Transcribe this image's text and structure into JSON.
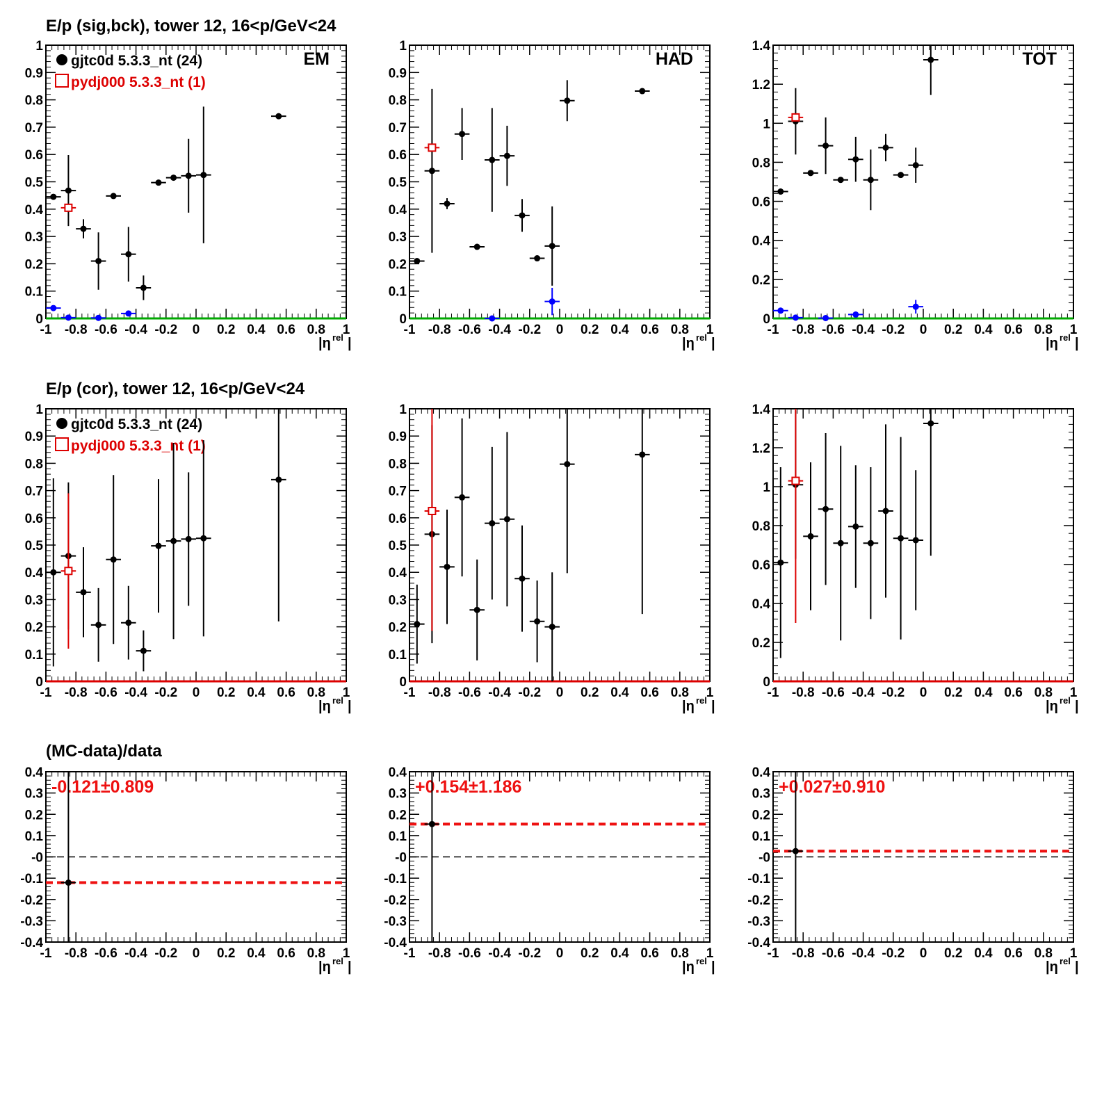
{
  "row_titles": [
    "E/p (sig,bck), tower 12, 16<p/GeV<24",
    "E/p (cor), tower 12, 16<p/GeV<24",
    "(MC-data)/data"
  ],
  "legend": {
    "data_label": "gjtc0d 5.3.3_nt (24)",
    "mc_label": "pydj000 5.3.3_nt (1)"
  },
  "xlabel": "|η",
  "xlabel_sup": "rel",
  "colors": {
    "data": "#000000",
    "mc": "#dd0000",
    "background": "#0000ff",
    "baseline_green": "#00aa00",
    "baseline_red": "#dd0000"
  },
  "chart_data": [
    {
      "type": "scatter",
      "panel": "EM",
      "label": "EM",
      "xlim": [
        -1,
        1
      ],
      "ylim": [
        0,
        1
      ],
      "xticks": [
        "-1",
        "-0.8",
        "-0.6",
        "-0.4",
        "-0.2",
        "0",
        "0.2",
        "0.4",
        "0.6",
        "0.8",
        "1"
      ],
      "yticks": [
        "0",
        "0.1",
        "0.2",
        "0.3",
        "0.4",
        "0.5",
        "0.6",
        "0.7",
        "0.8",
        "0.9",
        "1"
      ],
      "series": [
        {
          "name": "gjtc0d 5.3.3_nt (24)",
          "color": "#000000",
          "marker": "dot",
          "x": [
            -0.95,
            -0.85,
            -0.75,
            -0.65,
            -0.55,
            -0.45,
            -0.35,
            -0.25,
            -0.15,
            -0.05,
            0.05,
            0.55
          ],
          "y": [
            0.445,
            0.468,
            0.328,
            0.21,
            0.448,
            0.235,
            0.112,
            0.497,
            0.515,
            0.522,
            0.525,
            0.74
          ],
          "yerr": [
            0.005,
            0.13,
            0.035,
            0.105,
            0.005,
            0.1,
            0.045,
            0.005,
            0.005,
            0.135,
            0.25,
            0.005
          ]
        },
        {
          "name": "pydj000 5.3.3_nt (1)",
          "color": "#dd0000",
          "marker": "open-square",
          "x": [
            -0.85
          ],
          "y": [
            0.405
          ],
          "yerr": [
            0.0
          ]
        },
        {
          "color": "#0000ff",
          "marker": "dot",
          "x": [
            -0.95,
            -0.85,
            -0.65,
            -0.45
          ],
          "y": [
            0.038,
            0.003,
            0.002,
            0.018
          ],
          "yerr": [
            0.003,
            0.003,
            0.002,
            0.006
          ]
        }
      ],
      "baseline": {
        "y": 0,
        "color": "#00aa00"
      }
    },
    {
      "type": "scatter",
      "panel": "HAD",
      "label": "HAD",
      "xlim": [
        -1,
        1
      ],
      "ylim": [
        0,
        1
      ],
      "xticks": [
        "-1",
        "-0.8",
        "-0.6",
        "-0.4",
        "-0.2",
        "0",
        "0.2",
        "0.4",
        "0.6",
        "0.8",
        "1"
      ],
      "yticks": [
        "0",
        "0.1",
        "0.2",
        "0.3",
        "0.4",
        "0.5",
        "0.6",
        "0.7",
        "0.8",
        "0.9",
        "1"
      ],
      "series": [
        {
          "color": "#000000",
          "marker": "dot",
          "x": [
            -0.95,
            -0.85,
            -0.75,
            -0.65,
            -0.55,
            -0.45,
            -0.35,
            -0.25,
            -0.15,
            -0.05,
            0.05,
            0.55
          ],
          "y": [
            0.21,
            0.54,
            0.42,
            0.675,
            0.262,
            0.58,
            0.595,
            0.377,
            0.22,
            0.265,
            0.797,
            0.832
          ],
          "yerr": [
            0.005,
            0.3,
            0.02,
            0.095,
            0.005,
            0.19,
            0.11,
            0.06,
            0.005,
            0.145,
            0.075,
            0.005
          ]
        },
        {
          "color": "#dd0000",
          "marker": "open-square",
          "x": [
            -0.85
          ],
          "y": [
            0.625
          ],
          "yerr": [
            0.0
          ]
        },
        {
          "color": "#0000ff",
          "marker": "dot",
          "x": [
            -0.45,
            -0.05
          ],
          "y": [
            0.0,
            0.062
          ],
          "yerr": [
            0.002,
            0.05
          ]
        }
      ],
      "baseline": {
        "y": 0,
        "color": "#00aa00"
      }
    },
    {
      "type": "scatter",
      "panel": "TOT",
      "label": "TOT",
      "xlim": [
        -1,
        1
      ],
      "ylim": [
        0,
        1.4
      ],
      "xticks": [
        "-1",
        "-0.8",
        "-0.6",
        "-0.4",
        "-0.2",
        "0",
        "0.2",
        "0.4",
        "0.6",
        "0.8",
        "1"
      ],
      "yticks": [
        "0",
        "0.2",
        "0.4",
        "0.6",
        "0.8",
        "1",
        "1.2",
        "1.4"
      ],
      "series": [
        {
          "color": "#000000",
          "marker": "dot",
          "x": [
            -0.95,
            -0.85,
            -0.75,
            -0.65,
            -0.55,
            -0.45,
            -0.35,
            -0.25,
            -0.15,
            -0.05,
            0.05
          ],
          "y": [
            0.65,
            1.01,
            0.745,
            0.885,
            0.71,
            0.815,
            0.71,
            0.875,
            0.735,
            0.785,
            1.325
          ],
          "yerr": [
            0.005,
            0.17,
            0.005,
            0.145,
            0.005,
            0.115,
            0.155,
            0.07,
            0.005,
            0.09,
            0.18
          ]
        },
        {
          "color": "#dd0000",
          "marker": "open-square",
          "x": [
            -0.85
          ],
          "y": [
            1.03
          ],
          "yerr": [
            0.0
          ]
        },
        {
          "color": "#0000ff",
          "marker": "dot",
          "x": [
            -0.95,
            -0.85,
            -0.65,
            -0.45,
            -0.05
          ],
          "y": [
            0.04,
            0.004,
            0.002,
            0.02,
            0.06
          ],
          "yerr": [
            0.003,
            0.003,
            0.002,
            0.006,
            0.035
          ]
        }
      ],
      "baseline": {
        "y": 0,
        "color": "#00aa00"
      }
    },
    {
      "type": "scatter",
      "panel": "EM-cor",
      "xlim": [
        -1,
        1
      ],
      "ylim": [
        0,
        1
      ],
      "xticks": [
        "-1",
        "-0.8",
        "-0.6",
        "-0.4",
        "-0.2",
        "0",
        "0.2",
        "0.4",
        "0.6",
        "0.8",
        "1"
      ],
      "yticks": [
        "0",
        "0.1",
        "0.2",
        "0.3",
        "0.4",
        "0.5",
        "0.6",
        "0.7",
        "0.8",
        "0.9",
        "1"
      ],
      "series": [
        {
          "name": "gjtc0d 5.3.3_nt (24)",
          "color": "#000000",
          "marker": "dot",
          "x": [
            -0.95,
            -0.85,
            -0.75,
            -0.65,
            -0.55,
            -0.45,
            -0.35,
            -0.25,
            -0.15,
            -0.05,
            0.05,
            0.55
          ],
          "y": [
            0.4,
            0.46,
            0.327,
            0.207,
            0.447,
            0.215,
            0.112,
            0.497,
            0.515,
            0.522,
            0.525,
            0.74
          ],
          "yerr": [
            0.345,
            0.27,
            0.165,
            0.135,
            0.31,
            0.135,
            0.075,
            0.245,
            0.36,
            0.245,
            0.36,
            0.52
          ]
        },
        {
          "name": "pydj000 5.3.3_nt (1)",
          "color": "#dd0000",
          "marker": "open-square",
          "x": [
            -0.85
          ],
          "y": [
            0.405
          ],
          "yerr": [
            0.285
          ]
        }
      ],
      "baseline": {
        "y": 0,
        "color": "#dd0000"
      }
    },
    {
      "type": "scatter",
      "panel": "HAD-cor",
      "xlim": [
        -1,
        1
      ],
      "ylim": [
        0,
        1
      ],
      "xticks": [
        "-1",
        "-0.8",
        "-0.6",
        "-0.4",
        "-0.2",
        "0",
        "0.2",
        "0.4",
        "0.6",
        "0.8",
        "1"
      ],
      "yticks": [
        "0",
        "0.1",
        "0.2",
        "0.3",
        "0.4",
        "0.5",
        "0.6",
        "0.7",
        "0.8",
        "0.9",
        "1"
      ],
      "series": [
        {
          "color": "#000000",
          "marker": "dot",
          "x": [
            -0.95,
            -0.85,
            -0.75,
            -0.65,
            -0.55,
            -0.45,
            -0.35,
            -0.25,
            -0.15,
            -0.05,
            0.05,
            0.55
          ],
          "y": [
            0.21,
            0.54,
            0.42,
            0.675,
            0.262,
            0.58,
            0.595,
            0.377,
            0.22,
            0.2,
            0.797,
            0.832
          ],
          "yerr": [
            0.145,
            0.4,
            0.21,
            0.29,
            0.185,
            0.28,
            0.32,
            0.195,
            0.15,
            0.2,
            0.4,
            0.585
          ]
        },
        {
          "color": "#dd0000",
          "marker": "open-square",
          "x": [
            -0.85
          ],
          "y": [
            0.625
          ],
          "yerr": [
            0.44
          ]
        }
      ],
      "baseline": {
        "y": 0,
        "color": "#dd0000"
      }
    },
    {
      "type": "scatter",
      "panel": "TOT-cor",
      "xlim": [
        -1,
        1
      ],
      "ylim": [
        0,
        1.4
      ],
      "xticks": [
        "-1",
        "-0.8",
        "-0.6",
        "-0.4",
        "-0.2",
        "0",
        "0.2",
        "0.4",
        "0.6",
        "0.8",
        "1"
      ],
      "yticks": [
        "0",
        "0.2",
        "0.4",
        "0.6",
        "0.8",
        "1",
        "1.2",
        "1.4"
      ],
      "series": [
        {
          "color": "#000000",
          "marker": "dot",
          "x": [
            -0.95,
            -0.85,
            -0.75,
            -0.65,
            -0.55,
            -0.45,
            -0.35,
            -0.25,
            -0.15,
            -0.05,
            0.05
          ],
          "y": [
            0.61,
            1.01,
            0.745,
            0.885,
            0.71,
            0.795,
            0.71,
            0.875,
            0.735,
            0.725,
            1.325
          ],
          "yerr": [
            0.49,
            0.38,
            0.38,
            0.39,
            0.5,
            0.315,
            0.39,
            0.445,
            0.52,
            0.36,
            0.68
          ]
        },
        {
          "color": "#dd0000",
          "marker": "open-square",
          "x": [
            -0.85
          ],
          "y": [
            1.03
          ],
          "yerr": [
            0.73
          ]
        }
      ],
      "baseline": {
        "y": 0,
        "color": "#dd0000"
      }
    },
    {
      "type": "scatter",
      "panel": "EM-ratio",
      "xlim": [
        -1,
        1
      ],
      "ylim": [
        -0.4,
        0.4
      ],
      "xticks": [
        "-1",
        "-0.8",
        "-0.6",
        "-0.4",
        "-0.2",
        "0",
        "0.2",
        "0.4",
        "0.6",
        "0.8",
        "1"
      ],
      "yticks": [
        "-0.4",
        "-0.3",
        "-0.2",
        "-0.1",
        "-0",
        "0.1",
        "0.2",
        "0.3",
        "0.4"
      ],
      "annotation": "-0.121±0.809",
      "series": [
        {
          "color": "#000000",
          "marker": "dot",
          "x": [
            -0.85
          ],
          "y": [
            -0.121
          ],
          "yerr": [
            0.809
          ]
        }
      ],
      "mean_line": -0.121,
      "zero_line": 0
    },
    {
      "type": "scatter",
      "panel": "HAD-ratio",
      "xlim": [
        -1,
        1
      ],
      "ylim": [
        -0.4,
        0.4
      ],
      "xticks": [
        "-1",
        "-0.8",
        "-0.6",
        "-0.4",
        "-0.2",
        "0",
        "0.2",
        "0.4",
        "0.6",
        "0.8",
        "1"
      ],
      "yticks": [
        "-0.4",
        "-0.3",
        "-0.2",
        "-0.1",
        "-0",
        "0.1",
        "0.2",
        "0.3",
        "0.4"
      ],
      "annotation": "+0.154±1.186",
      "series": [
        {
          "color": "#000000",
          "marker": "dot",
          "x": [
            -0.85
          ],
          "y": [
            0.154
          ],
          "yerr": [
            1.186
          ]
        }
      ],
      "mean_line": 0.154,
      "zero_line": 0
    },
    {
      "type": "scatter",
      "panel": "TOT-ratio",
      "xlim": [
        -1,
        1
      ],
      "ylim": [
        -0.4,
        0.4
      ],
      "xticks": [
        "-1",
        "-0.8",
        "-0.6",
        "-0.4",
        "-0.2",
        "0",
        "0.2",
        "0.4",
        "0.6",
        "0.8",
        "1"
      ],
      "yticks": [
        "-0.4",
        "-0.3",
        "-0.2",
        "-0.1",
        "-0",
        "0.1",
        "0.2",
        "0.3",
        "0.4"
      ],
      "annotation": "+0.027±0.910",
      "series": [
        {
          "color": "#000000",
          "marker": "dot",
          "x": [
            -0.85
          ],
          "y": [
            0.027
          ],
          "yerr": [
            0.91
          ]
        }
      ],
      "mean_line": 0.027,
      "zero_line": 0
    }
  ]
}
